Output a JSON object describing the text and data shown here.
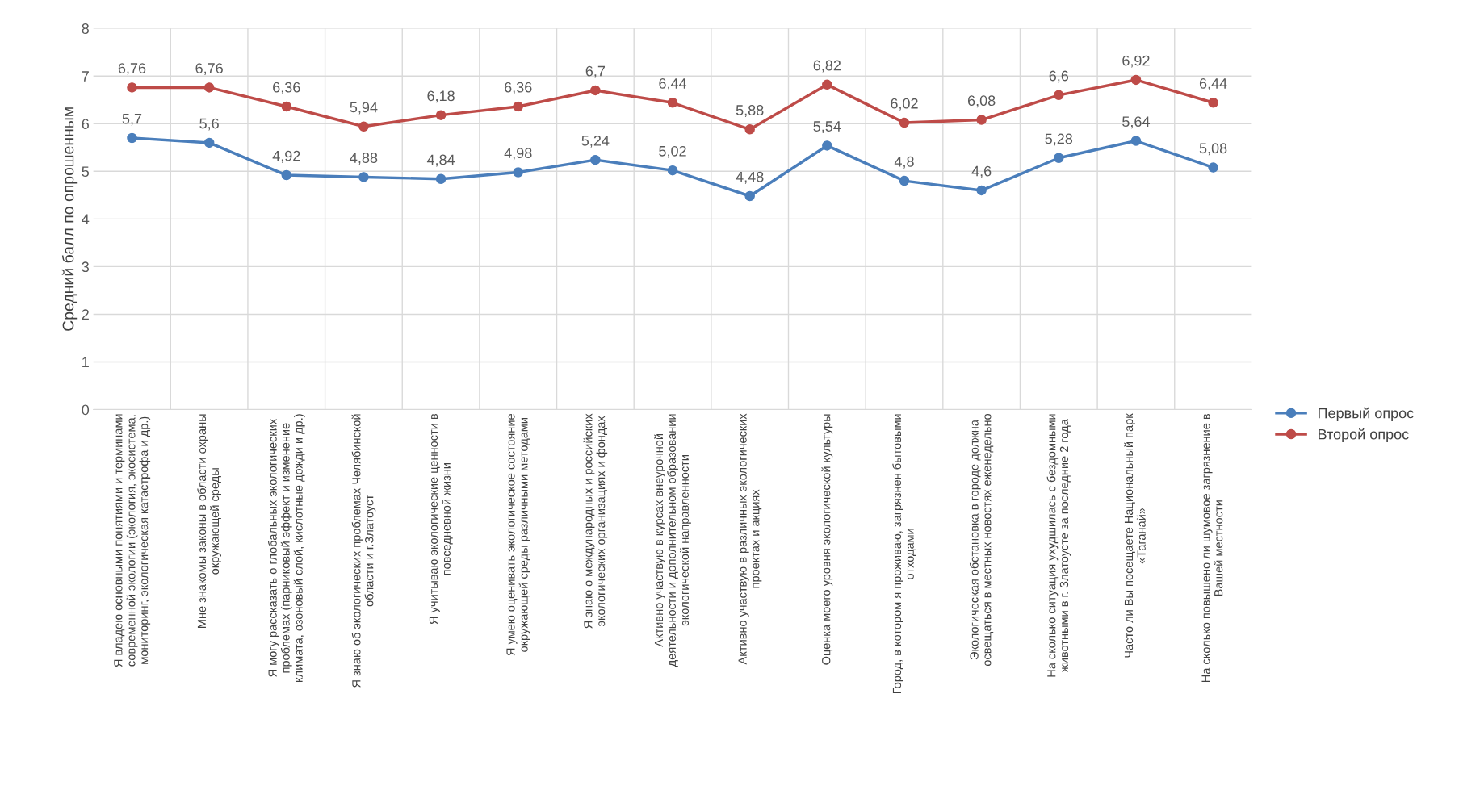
{
  "chart_data": {
    "type": "line",
    "ylabel": "Средний балл по опрошенным",
    "categories": [
      "Я владею основными понятиями и терминами\nсовременной экологии (экология, экосистема,\nмониторинг, экологическая катастрофа и др.)",
      "Мне знакомы законы в области охраны\nокружающей среды",
      "Я могу рассказать о глобальных экологических\nпроблемах (парниковый эффект и изменение\nклимата, озоновый слой, кислотные дожди и др.)",
      "Я знаю об экологических проблемах Челябинской\nобласти и г.Златоуст",
      "Я учитываю экологические ценности в\nповседневной жизни",
      "Я умею оценивать экологическое состояние\nокружающей среды различными методами",
      "Я знаю о международных и российских\nэкологических организациях и фондах",
      "Активно участвую в курсах внеурочной\nдеятельности и дополнительном образовании\nэкологической направленности",
      "Активно участвую в различных экологических\nпроектах и акциях",
      "Оценка моего уровня экологической культуры",
      "Город, в котором я проживаю, загрязнен бытовыми\nотходами",
      "Экологическая обстановка в городе должна\nосвещаться в местных новостях еженедельно",
      "На сколько ситуация ухудшилась с бездомными\nживотными в г. Златоусте за последние 2 года",
      "Часто ли Вы посещаете Национальный парк\n«Таганай»",
      "На сколько повышено ли шумовое загрязнение в\nВашей местности"
    ],
    "series": [
      {
        "name": "Первый опрос",
        "color": "#4a7ebb",
        "values": [
          5.7,
          5.6,
          4.92,
          4.88,
          4.84,
          4.98,
          5.24,
          5.02,
          4.48,
          5.54,
          4.8,
          4.6,
          5.28,
          5.64,
          5.08
        ],
        "value_labels": [
          "5,7",
          "5,6",
          "4,92",
          "4,88",
          "4,84",
          "4,98",
          "5,24",
          "5,02",
          "4,48",
          "5,54",
          "4,8",
          "4,6",
          "5,28",
          "5,64",
          "5,08"
        ]
      },
      {
        "name": "Второй опрос",
        "color": "#be4b48",
        "values": [
          6.76,
          6.76,
          6.36,
          5.94,
          6.18,
          6.36,
          6.7,
          6.44,
          5.88,
          6.82,
          6.02,
          6.08,
          6.6,
          6.92,
          6.44
        ],
        "value_labels": [
          "6,76",
          "6,76",
          "6,36",
          "5,94",
          "6,18",
          "6,36",
          "6,7",
          "6,44",
          "5,88",
          "6,82",
          "6,02",
          "6,08",
          "6,6",
          "6,92",
          "6,44"
        ]
      }
    ],
    "ylim": [
      0,
      8
    ],
    "yticks": [
      0,
      1,
      2,
      3,
      4,
      5,
      6,
      7,
      8
    ],
    "grid": true,
    "legend": "right",
    "marker": "circle",
    "line_style": "solid"
  }
}
